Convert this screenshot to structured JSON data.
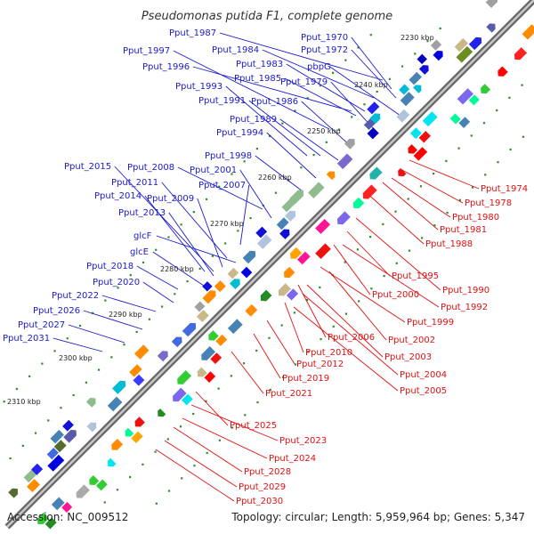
{
  "title": "Pseudomonas putida F1, complete genome",
  "footer": {
    "accession": "Accession: NC_009512",
    "topology": "Topology: circular; Length: 5,959,964 bp; Genes: 5,347"
  },
  "colors": {
    "forward_label": "#1a1acc",
    "reverse_label": "#e01010",
    "backbone": "#888888",
    "tick": "#2e8b2e"
  },
  "kbp_labels": [
    "2230 kbp",
    "2240 kbp",
    "2250 kbp",
    "2260 kbp",
    "2270 kbp",
    "2280 kbp",
    "2290 kbp",
    "2300 kbp",
    "2310 kbp"
  ],
  "forward_labels": [
    "Pput_1987",
    "Pput_1997",
    "Pput_1996",
    "Pput_1984",
    "Pput_1983",
    "Pput_1985",
    "Pput_1970",
    "Pput_1972",
    "pbpG",
    "Pput_1979",
    "Pput_1993",
    "Pput_1991",
    "Pput_1986",
    "Pput_1989",
    "Pput_1994",
    "Pput_1998",
    "Pput_2008",
    "Pput_2001",
    "Pput_2015",
    "Pput_2011",
    "Pput_2007",
    "Pput_2014",
    "Pput_2009",
    "Pput_2013",
    "glcF",
    "glcE",
    "Pput_2018",
    "Pput_2020",
    "Pput_2022",
    "Pput_2026",
    "Pput_2027",
    "Pput_2031"
  ],
  "reverse_labels": [
    "Pput_1974",
    "Pput_1978",
    "Pput_1980",
    "Pput_1981",
    "Pput_1988",
    "Pput_1995",
    "Pput_1990",
    "Pput_2000",
    "Pput_1992",
    "Pput_1999",
    "Pput_2006",
    "Pput_2002",
    "Pput_2010",
    "Pput_2003",
    "Pput_2012",
    "Pput_2004",
    "Pput_2019",
    "Pput_2005",
    "Pput_2021",
    "Pput_2025",
    "Pput_2023",
    "Pput_2024",
    "Pput_2028",
    "Pput_2029",
    "Pput_2030"
  ]
}
